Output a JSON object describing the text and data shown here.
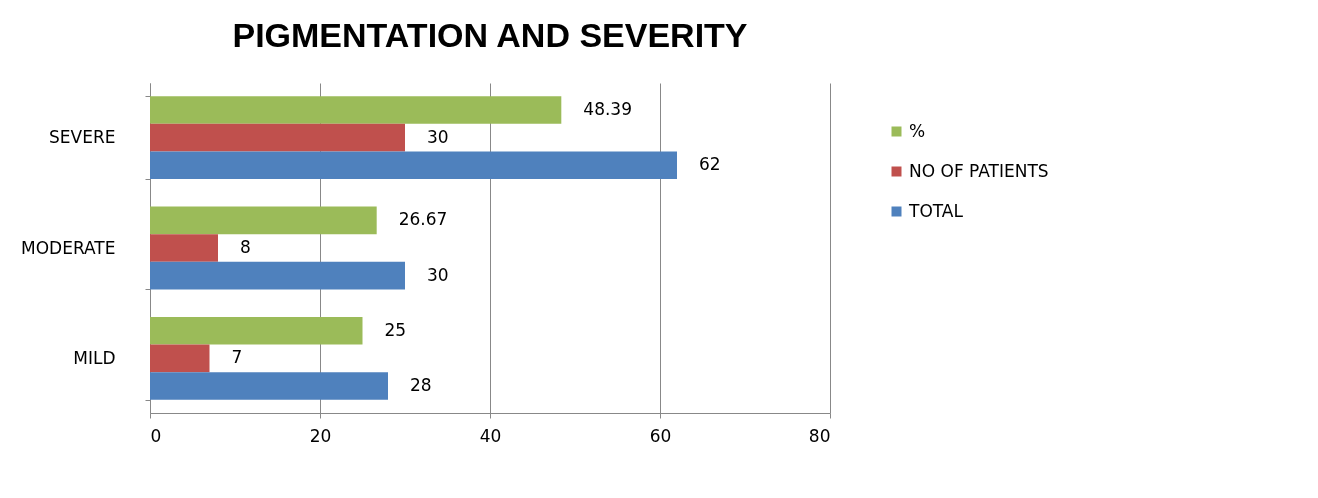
{
  "chart_data": {
    "type": "bar",
    "title": "PIGMENTATION AND SEVERITY",
    "orientation": "horizontal",
    "categories": [
      "SEVERE",
      "MODERATE",
      "MILD"
    ],
    "series": [
      {
        "name": "%",
        "color": "#9bbb59",
        "values": [
          48.39,
          26.67,
          25
        ]
      },
      {
        "name": "NO OF PATIENTS",
        "color": "#c0504d",
        "values": [
          30,
          8,
          7
        ]
      },
      {
        "name": "TOTAL",
        "color": "#4f81bd",
        "values": [
          62,
          30,
          28
        ]
      }
    ],
    "xlim": [
      0,
      80
    ],
    "xticks": [
      0,
      20,
      40,
      60,
      80
    ],
    "grid": "x",
    "legend": "right",
    "data_labels": true
  }
}
